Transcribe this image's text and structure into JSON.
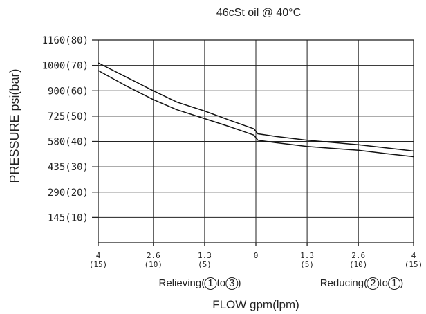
{
  "chart_data": {
    "type": "line",
    "title": "46cSt oil @ 40°C",
    "ylabel": "PRESSURE  psi(bar)",
    "xlabel": "FLOW gpm(lpm)",
    "x_unit": "gpm",
    "x_tick_values": [
      -4,
      -2.6,
      -1.3,
      0,
      1.3,
      2.6,
      4
    ],
    "x_tick_labels": [
      {
        "top": "4",
        "bottom": "(15)"
      },
      {
        "top": "2.6",
        "bottom": "(10)"
      },
      {
        "top": "1.3",
        "bottom": "(5)"
      },
      {
        "top": "0",
        "bottom": ""
      },
      {
        "top": "1.3",
        "bottom": "(5)"
      },
      {
        "top": "2.6",
        "bottom": "(10)"
      },
      {
        "top": "4",
        "bottom": "(15)"
      }
    ],
    "y_tick_values": [
      145,
      290,
      435,
      580,
      725,
      900,
      1000,
      1160
    ],
    "y_tick_labels": [
      "145(10)",
      "290(20)",
      "435(30)",
      "580(40)",
      "725(50)",
      "900(60)",
      "1000(70)",
      "1160(80)"
    ],
    "xlim": [
      -4,
      4
    ],
    "ylim_bar": [
      0,
      80
    ],
    "grid": true,
    "region_labels": [
      {
        "side": "left",
        "prefix": "Relieving(",
        "from": "1",
        "mid": "to",
        "to": "3",
        "suffix": ")"
      },
      {
        "side": "right",
        "prefix": "Reducing(",
        "from": "2",
        "mid": "to",
        "to": "1",
        "suffix": ")"
      }
    ],
    "series": [
      {
        "x": [
          -4,
          -3.3,
          -2.6,
          -2.0,
          -1.3,
          -0.6,
          -0.05,
          0.05,
          0.5,
          1.3,
          2.0,
          2.6,
          3.3,
          4
        ],
        "y_bar": [
          71,
          65.5,
          60,
          55.5,
          52,
          48,
          45,
          43,
          42,
          40.5,
          39.5,
          38.7,
          37.5,
          36.2
        ]
      },
      {
        "x": [
          -4,
          -3.3,
          -2.6,
          -2.0,
          -1.3,
          -0.6,
          -0.05,
          0.05,
          0.5,
          1.3,
          2.0,
          2.6,
          3.3,
          4
        ],
        "y_bar": [
          68,
          62,
          56.5,
          52.5,
          49,
          45.5,
          42.5,
          40.5,
          39.5,
          38,
          37.2,
          36.5,
          35.2,
          34
        ]
      }
    ]
  }
}
